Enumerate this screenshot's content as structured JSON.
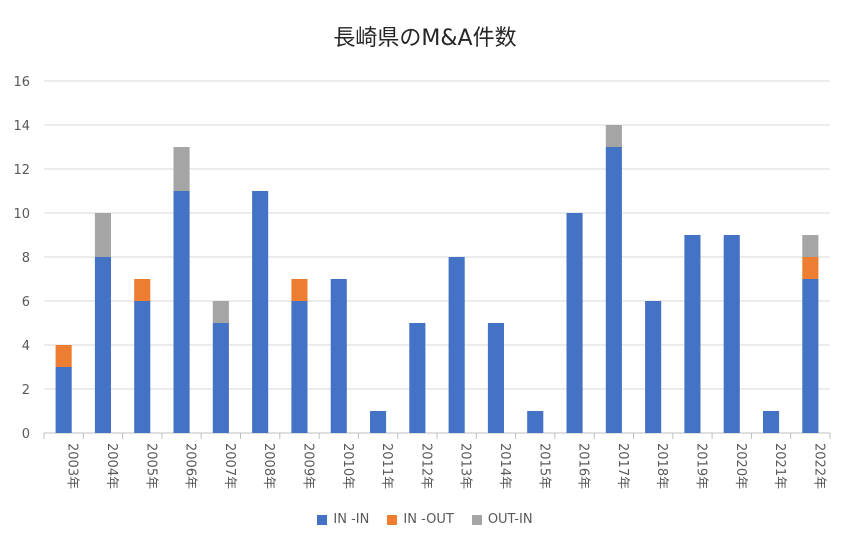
{
  "chart_data": {
    "type": "bar",
    "stacked": true,
    "title": "長崎県のM&A件数",
    "xlabel": "",
    "ylabel": "",
    "ylim": [
      0,
      16
    ],
    "yticks": [
      0,
      2,
      4,
      6,
      8,
      10,
      12,
      14,
      16
    ],
    "grid": true,
    "legend_position": "bottom",
    "categories": [
      "2003年",
      "2004年",
      "2005年",
      "2006年",
      "2007年",
      "2008年",
      "2009年",
      "2010年",
      "2011年",
      "2012年",
      "2013年",
      "2014年",
      "2015年",
      "2016年",
      "2017年",
      "2018年",
      "2019年",
      "2020年",
      "2021年",
      "2022年"
    ],
    "series": [
      {
        "name": "IN -IN",
        "color": "#4472C4",
        "values": [
          3,
          8,
          6,
          11,
          5,
          11,
          6,
          7,
          1,
          5,
          8,
          5,
          1,
          10,
          13,
          6,
          9,
          9,
          1,
          7
        ]
      },
      {
        "name": "IN -OUT",
        "color": "#ED7D31",
        "values": [
          1,
          0,
          1,
          0,
          0,
          0,
          1,
          0,
          0,
          0,
          0,
          0,
          0,
          0,
          0,
          0,
          0,
          0,
          0,
          1
        ]
      },
      {
        "name": "OUT-IN",
        "color": "#A5A5A5",
        "values": [
          0,
          2,
          0,
          2,
          1,
          0,
          0,
          0,
          0,
          0,
          0,
          0,
          0,
          0,
          1,
          0,
          0,
          0,
          0,
          1
        ]
      }
    ]
  }
}
